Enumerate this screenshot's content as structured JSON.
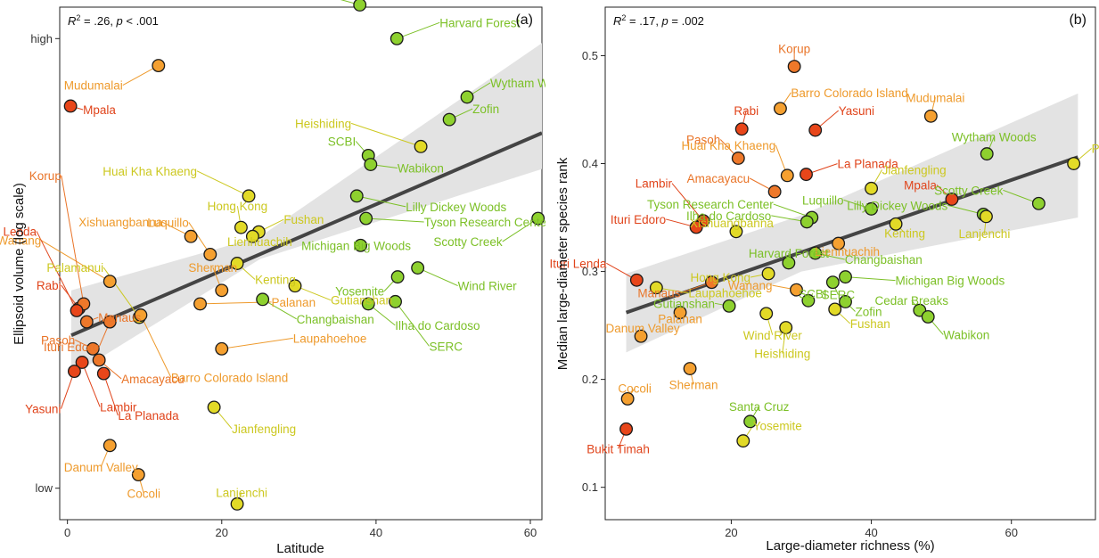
{
  "chart_data": [
    {
      "type": "scatter",
      "panel_label": "(a)",
      "stats": {
        "r2": ".26",
        "p": "< .001"
      },
      "xlabel": "Latitude",
      "ylabel": "Ellipsoid volume (log scale)",
      "xlim": [
        -1,
        61.5
      ],
      "ylim": [
        -0.7,
        10.7
      ],
      "x_ticks": [
        0,
        20,
        40,
        60
      ],
      "y_ticks": [
        {
          "value": 0,
          "label": "low"
        },
        {
          "value": 10,
          "label": "high"
        }
      ],
      "grid": false,
      "trend": {
        "x0": 0.5,
        "y0": 3.4,
        "x1": 61.5,
        "y1": 7.9
      },
      "band": {
        "lower": [
          [
            0.5,
            2.5
          ],
          [
            25,
            5.1
          ],
          [
            61.5,
            7.1
          ]
        ],
        "upper": [
          [
            0.5,
            4.4
          ],
          [
            25,
            5.6
          ],
          [
            61.5,
            9.9
          ]
        ]
      },
      "points": [
        {
          "x": 37.9,
          "y": 10.75,
          "label": "Cedar Breaks",
          "color": "#8ED12F",
          "label_color": "#7CC027"
        },
        {
          "x": 42.7,
          "y": 10.0,
          "label": "Harvard Forest",
          "color": "#8ED12F",
          "label_color": "#7CC027"
        },
        {
          "x": 11.8,
          "y": 9.4,
          "label": "Mudumalai",
          "color": "#F5A030",
          "label_color": "#EE9A2C"
        },
        {
          "x": 0.4,
          "y": 8.5,
          "label": "Mpala",
          "color": "#E8461A",
          "label_color": "#E0441B"
        },
        {
          "x": 51.8,
          "y": 8.7,
          "label": "Wytham Woods",
          "color": "#8ED12F",
          "label_color": "#7CC027"
        },
        {
          "x": 49.5,
          "y": 8.2,
          "label": "Zofin",
          "color": "#8ED12F",
          "label_color": "#7CC027"
        },
        {
          "x": 39.0,
          "y": 7.4,
          "label": "SCBI",
          "color": "#8ED12F",
          "label_color": "#7CC027"
        },
        {
          "x": 45.8,
          "y": 7.6,
          "label": "Heishiding",
          "color": "#E2DA27",
          "label_color": "#CCC820"
        },
        {
          "x": 39.3,
          "y": 7.2,
          "label": "Wabikon",
          "color": "#8ED12F",
          "label_color": "#7CC027"
        },
        {
          "x": 23.5,
          "y": 6.5,
          "label": "Huai Kha Khaeng",
          "color": "#E2DA27",
          "label_color": "#CCC820"
        },
        {
          "x": 37.5,
          "y": 6.5,
          "label": "Lilly Dickey Woods",
          "color": "#8ED12F",
          "label_color": "#7CC027"
        },
        {
          "x": 38.7,
          "y": 6.0,
          "label": "Tyson Research Center",
          "color": "#8ED12F",
          "label_color": "#7CC027"
        },
        {
          "x": 24.8,
          "y": 5.7,
          "label": "Fushan",
          "color": "#E2DA27",
          "label_color": "#CCC820"
        },
        {
          "x": 22.5,
          "y": 5.8,
          "label": "Hong Kong",
          "color": "#E2DA27",
          "label_color": "#CCC820"
        },
        {
          "x": 61.0,
          "y": 6.0,
          "label": "Scotty Creek",
          "color": "#8ED12F",
          "label_color": "#7CC027"
        },
        {
          "x": 24.0,
          "y": 5.6,
          "label": "Lienhuachih",
          "color": "#E2DA27",
          "label_color": "#CCC820"
        },
        {
          "x": 16.0,
          "y": 5.6,
          "label": "Xishuangbanna",
          "color": "#F5A030",
          "label_color": "#EE9A2C"
        },
        {
          "x": 38.0,
          "y": 5.4,
          "label": "Michigan Big Woods",
          "color": "#8ED12F",
          "label_color": "#7CC027"
        },
        {
          "x": 18.5,
          "y": 5.2,
          "label": "Luquillo",
          "color": "#F5A030",
          "label_color": "#EE9A2C"
        },
        {
          "x": 22.0,
          "y": 5.0,
          "label": "Kenting",
          "color": "#E2DA27",
          "label_color": "#CCC820"
        },
        {
          "x": 45.4,
          "y": 4.9,
          "label": "Wind River",
          "color": "#8ED12F",
          "label_color": "#7CC027"
        },
        {
          "x": 5.5,
          "y": 4.6,
          "label": "Wanang",
          "color": "#F5A030",
          "label_color": "#EE9A2C"
        },
        {
          "x": 29.5,
          "y": 4.5,
          "label": "Gutianshan",
          "color": "#E2DA27",
          "label_color": "#CCC820"
        },
        {
          "x": 42.8,
          "y": 4.7,
          "label": "Yosemite",
          "color": "#8ED12F",
          "label_color": "#7CC027"
        },
        {
          "x": 20.0,
          "y": 4.4,
          "label": "Sherman",
          "color": "#F5A030",
          "label_color": "#EE9A2C"
        },
        {
          "x": 1.5,
          "y": 4.0,
          "label": "Rabi",
          "color": "#E8461A",
          "label_color": "#E0441B"
        },
        {
          "x": 2.1,
          "y": 4.1,
          "label": "Korup",
          "color": "#EE782A",
          "label_color": "#E97428"
        },
        {
          "x": 1.2,
          "y": 3.95,
          "label": "Ituri Lenda",
          "color": "#E8461A",
          "label_color": "#E0441B"
        },
        {
          "x": 9.3,
          "y": 3.8,
          "label": "Palamanui",
          "color": "#E2DA27",
          "label_color": "#CCC820"
        },
        {
          "x": 17.2,
          "y": 4.1,
          "label": "Palanan",
          "color": "#F5A030",
          "label_color": "#EE9A2C"
        },
        {
          "x": 25.3,
          "y": 4.2,
          "label": "Changbaishan",
          "color": "#8ED12F",
          "label_color": "#7CC027"
        },
        {
          "x": 39.0,
          "y": 4.1,
          "label": "Ilha do Cardoso",
          "color": "#8ED12F",
          "label_color": "#7CC027"
        },
        {
          "x": 42.5,
          "y": 4.15,
          "label": "SERC",
          "color": "#8ED12F",
          "label_color": "#7CC027"
        },
        {
          "x": 2.5,
          "y": 3.7,
          "label": "Manaus",
          "color": "#EE782A",
          "label_color": "#E97428"
        },
        {
          "x": 5.5,
          "y": 3.7,
          "label": "Ituri Edoro",
          "color": "#EE782A",
          "label_color": "#E97428"
        },
        {
          "x": 9.5,
          "y": 3.85,
          "label": "Barro Colorado Island",
          "color": "#F5A030",
          "label_color": "#EE9A2C"
        },
        {
          "x": 3.3,
          "y": 3.1,
          "label": "Pasoh",
          "color": "#EE782A",
          "label_color": "#E97428"
        },
        {
          "x": 4.1,
          "y": 2.85,
          "label": "Amacayacu",
          "color": "#EE782A",
          "label_color": "#E97428"
        },
        {
          "x": 1.9,
          "y": 2.8,
          "label": "Lambir",
          "color": "#E8461A",
          "label_color": "#E0441B"
        },
        {
          "x": 0.9,
          "y": 2.6,
          "label": "Yasuni",
          "color": "#E8461A",
          "label_color": "#E0441B"
        },
        {
          "x": 4.7,
          "y": 2.55,
          "label": "La Planada",
          "color": "#E8461A",
          "label_color": "#E0441B"
        },
        {
          "x": 20.0,
          "y": 3.1,
          "label": "Laupahoehoe",
          "color": "#F5A030",
          "label_color": "#EE9A2C"
        },
        {
          "x": 19.0,
          "y": 1.8,
          "label": "Jianfengling",
          "color": "#E2DA27",
          "label_color": "#CCC820"
        },
        {
          "x": 5.5,
          "y": 0.95,
          "label": "Danum Valley",
          "color": "#F5A030",
          "label_color": "#EE9A2C"
        },
        {
          "x": 9.2,
          "y": 0.3,
          "label": "Cocoli",
          "color": "#F5A030",
          "label_color": "#EE9A2C"
        },
        {
          "x": 22.0,
          "y": -0.35,
          "label": "Lanjenchi",
          "color": "#E2DA27",
          "label_color": "#CCC820"
        }
      ]
    },
    {
      "type": "scatter",
      "panel_label": "(b)",
      "stats": {
        "r2": ".17",
        "p": "= .002"
      },
      "xlabel": "Large-diameter richness (%)",
      "ylabel": "Median large-diameter species rank",
      "xlim": [
        2,
        72
      ],
      "ylim": [
        0.07,
        0.545
      ],
      "x_ticks": [
        20,
        40,
        60
      ],
      "y_ticks": [
        {
          "value": 0.1,
          "label": "0.1"
        },
        {
          "value": 0.2,
          "label": "0.2"
        },
        {
          "value": 0.3,
          "label": "0.3"
        },
        {
          "value": 0.4,
          "label": "0.4"
        },
        {
          "value": 0.5,
          "label": "0.5"
        }
      ],
      "grid": false,
      "trend": {
        "x0": 5,
        "y0": 0.262,
        "x1": 69.5,
        "y1": 0.406
      },
      "band": {
        "lower": [
          [
            5,
            0.225
          ],
          [
            30,
            0.3
          ],
          [
            69.5,
            0.35
          ]
        ],
        "upper": [
          [
            5,
            0.298
          ],
          [
            30,
            0.352
          ],
          [
            69.5,
            0.465
          ]
        ]
      },
      "points": [
        {
          "x": 29.0,
          "y": 0.49,
          "label": "Korup",
          "color": "#EE782A",
          "label_color": "#E97428"
        },
        {
          "x": 27.0,
          "y": 0.451,
          "label": "Barro Colorado Island",
          "color": "#F5A030",
          "label_color": "#EE9A2C"
        },
        {
          "x": 48.5,
          "y": 0.444,
          "label": "Mudumalai",
          "color": "#F5A030",
          "label_color": "#EE9A2C"
        },
        {
          "x": 21.5,
          "y": 0.432,
          "label": "Rabi",
          "color": "#E8461A",
          "label_color": "#E0441B"
        },
        {
          "x": 32.0,
          "y": 0.431,
          "label": "Yasuni",
          "color": "#E8461A",
          "label_color": "#E0441B"
        },
        {
          "x": 56.5,
          "y": 0.409,
          "label": "Wytham Woods",
          "color": "#8ED12F",
          "label_color": "#7CC027"
        },
        {
          "x": 21.0,
          "y": 0.405,
          "label": "Pasoh",
          "color": "#EE782A",
          "label_color": "#E97428"
        },
        {
          "x": 68.9,
          "y": 0.4,
          "label": "Palamanui",
          "color": "#E2DA27",
          "label_color": "#CCC820"
        },
        {
          "x": 30.7,
          "y": 0.39,
          "label": "La Planada",
          "color": "#E8461A",
          "label_color": "#E0441B"
        },
        {
          "x": 28.0,
          "y": 0.389,
          "label": "Huai Kha Khaeng",
          "color": "#F5A030",
          "label_color": "#EE9A2C"
        },
        {
          "x": 40.0,
          "y": 0.377,
          "label": "Jianfengling",
          "color": "#E2DA27",
          "label_color": "#CCC820"
        },
        {
          "x": 26.2,
          "y": 0.374,
          "label": "Amacayacu",
          "color": "#EE782A",
          "label_color": "#E97428"
        },
        {
          "x": 51.5,
          "y": 0.367,
          "label": "Mpala",
          "color": "#E8461A",
          "label_color": "#E0441B"
        },
        {
          "x": 63.9,
          "y": 0.363,
          "label": "Scotty Creek",
          "color": "#8ED12F",
          "label_color": "#7CC027"
        },
        {
          "x": 40.0,
          "y": 0.358,
          "label": "Luquillo",
          "color": "#8ED12F",
          "label_color": "#7CC027"
        },
        {
          "x": 56.0,
          "y": 0.353,
          "label": "Lilly Dickey Woods",
          "color": "#8ED12F",
          "label_color": "#7CC027"
        },
        {
          "x": 56.4,
          "y": 0.351,
          "label": "Lanjenchi",
          "color": "#E2DA27",
          "label_color": "#CCC820"
        },
        {
          "x": 31.5,
          "y": 0.35,
          "label": "Tyson Research Center",
          "color": "#8ED12F",
          "label_color": "#7CC027"
        },
        {
          "x": 16.0,
          "y": 0.347,
          "label": "Lambir",
          "color": "#E8461A",
          "label_color": "#E0441B"
        },
        {
          "x": 30.8,
          "y": 0.346,
          "label": "Ilha do Cardoso",
          "color": "#8ED12F",
          "label_color": "#7CC027"
        },
        {
          "x": 43.5,
          "y": 0.344,
          "label": "Kenting",
          "color": "#E2DA27",
          "label_color": "#CCC820"
        },
        {
          "x": 15.0,
          "y": 0.341,
          "label": "Ituri Edoro",
          "color": "#E8461A",
          "label_color": "#E0441B"
        },
        {
          "x": 20.7,
          "y": 0.337,
          "label": "Xishuangbanna",
          "color": "#E2DA27",
          "label_color": "#CCC820"
        },
        {
          "x": 35.3,
          "y": 0.326,
          "label": "Lienhuachih",
          "color": "#F5A030",
          "label_color": "#EE9A2C"
        },
        {
          "x": 32.0,
          "y": 0.317,
          "label": "Changbaishan",
          "color": "#8ED12F",
          "label_color": "#7CC027"
        },
        {
          "x": 28.2,
          "y": 0.308,
          "label": "Harvard Forest",
          "color": "#8ED12F",
          "label_color": "#7CC027"
        },
        {
          "x": 25.3,
          "y": 0.298,
          "label": "Hong Kong",
          "color": "#E2DA27",
          "label_color": "#CCC820"
        },
        {
          "x": 36.3,
          "y": 0.295,
          "label": "Michigan Big Woods",
          "color": "#8ED12F",
          "label_color": "#7CC027"
        },
        {
          "x": 6.5,
          "y": 0.292,
          "label": "Ituri Lenda",
          "color": "#E8461A",
          "label_color": "#E0441B"
        },
        {
          "x": 17.2,
          "y": 0.29,
          "label": "Manaus",
          "color": "#EE782A",
          "label_color": "#E97428"
        },
        {
          "x": 34.5,
          "y": 0.29,
          "label": "SERC",
          "color": "#8ED12F",
          "label_color": "#7CC027"
        },
        {
          "x": 9.3,
          "y": 0.285,
          "label": "Laupahoehoe",
          "color": "#E2DA27",
          "label_color": "#CCC820"
        },
        {
          "x": 29.3,
          "y": 0.283,
          "label": "Wanang",
          "color": "#F5A030",
          "label_color": "#EE9A2C"
        },
        {
          "x": 31.0,
          "y": 0.273,
          "label": "SCBI",
          "color": "#8ED12F",
          "label_color": "#7CC027"
        },
        {
          "x": 36.3,
          "y": 0.272,
          "label": "Zofin",
          "color": "#8ED12F",
          "label_color": "#7CC027"
        },
        {
          "x": 19.7,
          "y": 0.268,
          "label": "Gutianshan",
          "color": "#8ED12F",
          "label_color": "#7CC027"
        },
        {
          "x": 34.8,
          "y": 0.265,
          "label": "Fushan",
          "color": "#E2DA27",
          "label_color": "#CCC820"
        },
        {
          "x": 46.9,
          "y": 0.264,
          "label": "Cedar Breaks",
          "color": "#8ED12F",
          "label_color": "#7CC027"
        },
        {
          "x": 12.7,
          "y": 0.262,
          "label": "Palanan",
          "color": "#F5A030",
          "label_color": "#EE9A2C"
        },
        {
          "x": 25.0,
          "y": 0.261,
          "label": "Wind River",
          "color": "#E2DA27",
          "label_color": "#CCC820"
        },
        {
          "x": 48.1,
          "y": 0.258,
          "label": "Wabikon",
          "color": "#8ED12F",
          "label_color": "#7CC027"
        },
        {
          "x": 27.8,
          "y": 0.248,
          "label": "Heishiding",
          "color": "#E2DA27",
          "label_color": "#CCC820"
        },
        {
          "x": 7.1,
          "y": 0.24,
          "label": "Danum Valley",
          "color": "#F5A030",
          "label_color": "#EE9A2C"
        },
        {
          "x": 14.1,
          "y": 0.21,
          "label": "Sherman",
          "color": "#F5A030",
          "label_color": "#EE9A2C"
        },
        {
          "x": 5.2,
          "y": 0.182,
          "label": "Cocoli",
          "color": "#F5A030",
          "label_color": "#EE9A2C"
        },
        {
          "x": 22.7,
          "y": 0.161,
          "label": "Santa Cruz",
          "color": "#8ED12F",
          "label_color": "#7CC027"
        },
        {
          "x": 5.0,
          "y": 0.154,
          "label": "Bukit Timah",
          "color": "#E8461A",
          "label_color": "#E0441B"
        },
        {
          "x": 21.7,
          "y": 0.143,
          "label": "Yosemite",
          "color": "#E2DA27",
          "label_color": "#CCC820"
        }
      ]
    }
  ]
}
